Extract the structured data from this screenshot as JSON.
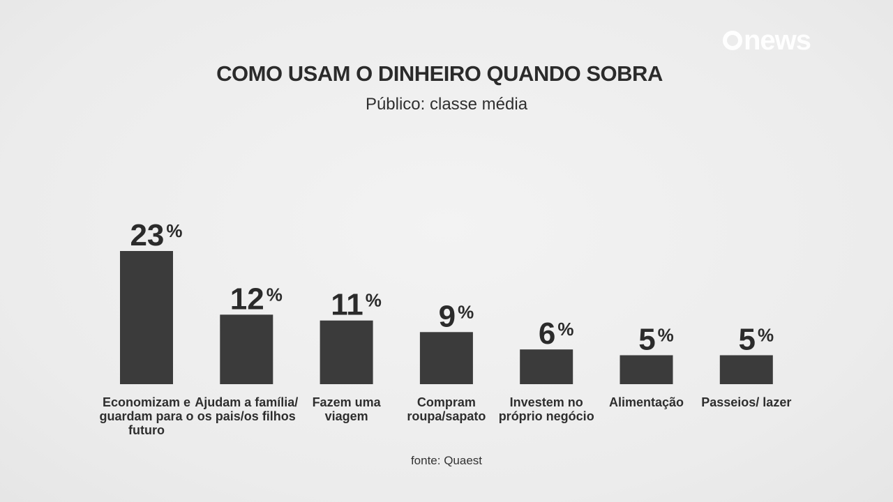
{
  "brand": {
    "logo_text": "news"
  },
  "chart_data": {
    "type": "bar",
    "title": "COMO USAM O DINHEIRO QUANDO SOBRA",
    "subtitle": "Público: classe média",
    "categories": [
      "Economizam e guardam para o futuro",
      "Ajudam a família/ os pais/os filhos",
      "Fazem uma viagem",
      "Compram roupa/sapato",
      "Investem no próprio negócio",
      "Alimentação",
      "Passeios/ lazer"
    ],
    "values": [
      23,
      12,
      11,
      9,
      6,
      5,
      5
    ],
    "unit": "%",
    "source": "fonte: Quaest",
    "bar_color": "#3b3b3b",
    "ylim": [
      0,
      25
    ],
    "grid": false,
    "legend": "none"
  }
}
